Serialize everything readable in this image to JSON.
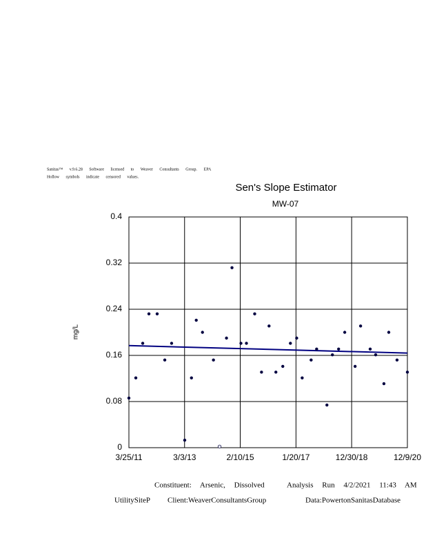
{
  "header": {
    "line1": "Sanitas™ v.9.6.28 Software licensed to Weaver Consultants Group. EPA",
    "line2": "Hollow symbols indicate censored values."
  },
  "chart_data": {
    "type": "scatter",
    "title": "Sen's Slope Estimator",
    "subtitle": "MW-07",
    "y_label": "mg/L",
    "x": [
      "3/25/11",
      "6/21/11",
      "9/17/11",
      "12/5/11",
      "3/19/12",
      "6/24/12",
      "9/19/12",
      "3/5/13",
      "5/30/13",
      "7/30/13",
      "10/17/13",
      "3/6/14",
      "5/23/14",
      "8/19/14",
      "10/28/14",
      "2/19/15",
      "4/30/15",
      "8/13/15",
      "11/8/15",
      "2/12/16",
      "5/9/16",
      "8/5/16",
      "11/10/16",
      "1/29/17",
      "4/9/17",
      "8/1/17",
      "10/10/17",
      "2/18/18",
      "4/29/18",
      "7/17/18",
      "10/3/18",
      "2/12/19",
      "4/23/19",
      "8/23/19",
      "11/1/19",
      "2/14/20",
      "4/16/20",
      "7/30/20",
      "12/9/20"
    ],
    "values": [
      0.086,
      0.121,
      0.181,
      0.232,
      0.232,
      0.152,
      0.181,
      0.013,
      0.121,
      0.221,
      0.2,
      0.152,
      0.002,
      0.19,
      0.312,
      0.181,
      0.181,
      0.232,
      0.131,
      0.211,
      0.131,
      0.141,
      0.181,
      0.19,
      0.121,
      0.152,
      0.171,
      0.074,
      0.161,
      0.171,
      0.2,
      0.141,
      0.211,
      0.171,
      0.161,
      0.111,
      0.2,
      0.152,
      0.131
    ],
    "hollow": [
      false,
      false,
      false,
      false,
      false,
      false,
      false,
      false,
      false,
      false,
      false,
      false,
      true,
      false,
      false,
      false,
      false,
      false,
      false,
      false,
      false,
      false,
      false,
      false,
      false,
      false,
      false,
      false,
      false,
      false,
      false,
      false,
      false,
      false,
      false,
      false,
      false,
      false,
      false
    ],
    "color": "#000040",
    "trend": {
      "x": [
        "3/25/11",
        "12/9/20"
      ],
      "values": [
        0.177,
        0.164
      ],
      "color": "#000080"
    },
    "xlim": [
      "3/25/11",
      "12/9/20"
    ],
    "xticks": [
      "3/25/11",
      "3/3/13",
      "2/10/15",
      "1/20/17",
      "12/30/18",
      "12/9/20"
    ],
    "ylim": [
      0,
      0.4
    ],
    "yticks": [
      0,
      0.08,
      0.16,
      0.24,
      0.32,
      0.4
    ],
    "grid": true
  },
  "footer": {
    "constituent": "Constituent: Arsenic, Dissolved",
    "run": "Analysis Run 4/2/2021 11:43 AM",
    "site": "UtilitySiteP",
    "client": "Client:WeaverConsultantsGroup",
    "database": "Data:PowertonSanitasDatabase"
  }
}
